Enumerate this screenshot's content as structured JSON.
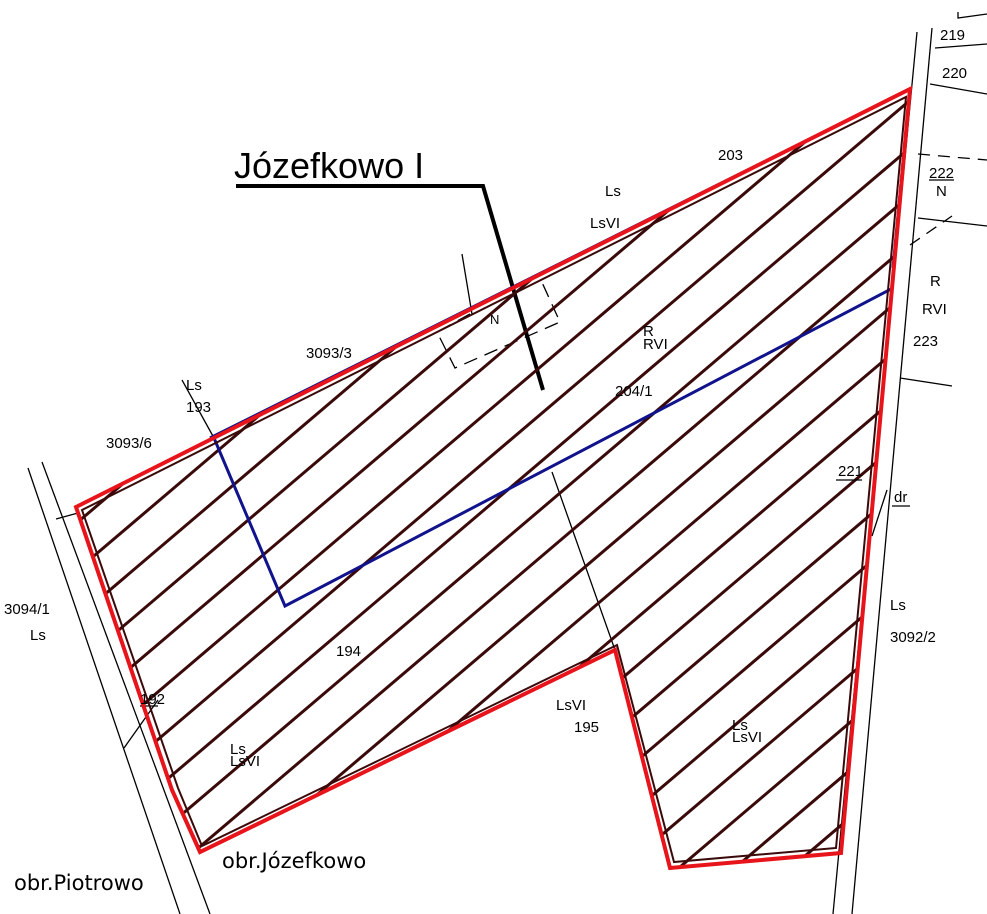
{
  "map": {
    "title": "Józefkowo I",
    "precincts": {
      "left": "obr.Piotrowo",
      "right": "obr.Józefkowo"
    },
    "labels": {
      "p219": "219",
      "p220": "220",
      "p222": "222",
      "p222_use": "N",
      "p203": "203",
      "ls_top": "Ls",
      "lsvi_top": "LsVI",
      "n_center": "N",
      "r_center": "R",
      "rvi_center": "RVI",
      "r_right": "R",
      "rvi_right": "RVI",
      "p223": "223",
      "p3093_3": "3093/3",
      "ls_193": "Ls",
      "p193": "193",
      "p3093_6": "3093/6",
      "p204_1": "204/1",
      "p221": "221",
      "dr": "dr",
      "p3094_1": "3094/1",
      "ls_left": "Ls",
      "p194": "194",
      "ls_right": "Ls",
      "p3092_2": "3092/2",
      "p192": "192",
      "lsvi_195": "LsVI",
      "p195": "195",
      "ls_bottom_right": "Ls",
      "lsvi_bottom_right": "LsVI",
      "ls_bottom_left": "Ls",
      "lsvi_bottom_left": "LsVI"
    },
    "colors": {
      "outline": "#e8141b",
      "hatch": "#3a0a0a",
      "boundary": "#10138c",
      "linework": "#000000"
    }
  }
}
